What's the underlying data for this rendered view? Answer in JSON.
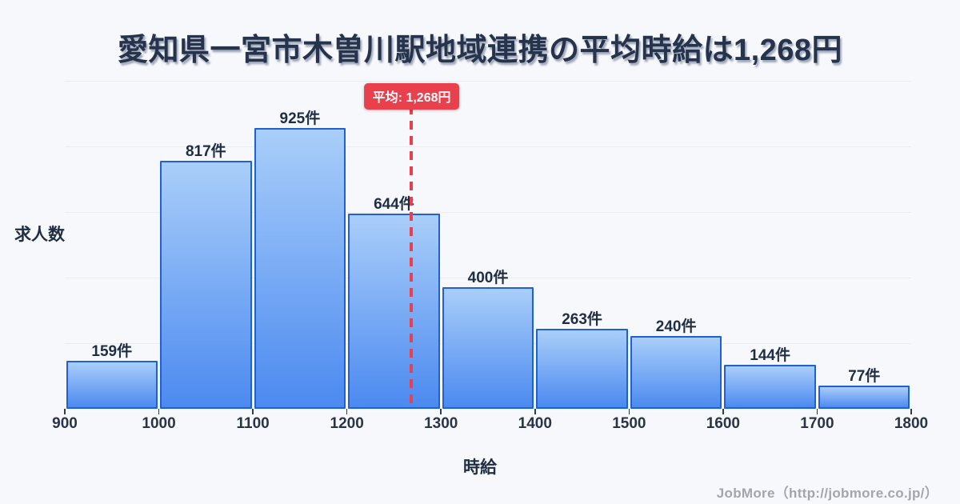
{
  "title": "愛知県一宮市木曽川駅地域連携の平均時給は1,268円",
  "footer": "JobMore（http://jobmore.co.jp/）",
  "colors": {
    "background": "#f7f8fb",
    "title_text": "#26334d",
    "bar_fill_top": "#a9cef9",
    "bar_fill_bottom": "#4c8af0",
    "bar_border": "#2160d4",
    "mean_red": "#e8404d",
    "gridline": "#e9ecf2",
    "axis_text": "#2a3447",
    "footer_text": "#a2a6ac"
  },
  "chart_data": {
    "type": "bar",
    "title": "愛知県一宮市木曽川駅地域連携の平均時給は1,268円",
    "xlabel": "時給",
    "ylabel": "求人数",
    "bin_edges": [
      900,
      1000,
      1100,
      1200,
      1300,
      1400,
      1500,
      1600,
      1700,
      1800
    ],
    "x_tick_labels": [
      "900",
      "1000",
      "1100",
      "1200",
      "1300",
      "1400",
      "1500",
      "1600",
      "1700",
      "1800"
    ],
    "values": [
      159,
      817,
      925,
      644,
      400,
      263,
      240,
      144,
      77
    ],
    "bar_labels": [
      "159件",
      "817件",
      "925件",
      "644件",
      "400件",
      "263件",
      "240件",
      "144件",
      "77件"
    ],
    "mean": 1268,
    "mean_label": "平均: 1,268円",
    "xlim": [
      900,
      1800
    ],
    "ylim": [
      0,
      1080
    ],
    "grid": "horizontal-faint",
    "legend": "none"
  }
}
